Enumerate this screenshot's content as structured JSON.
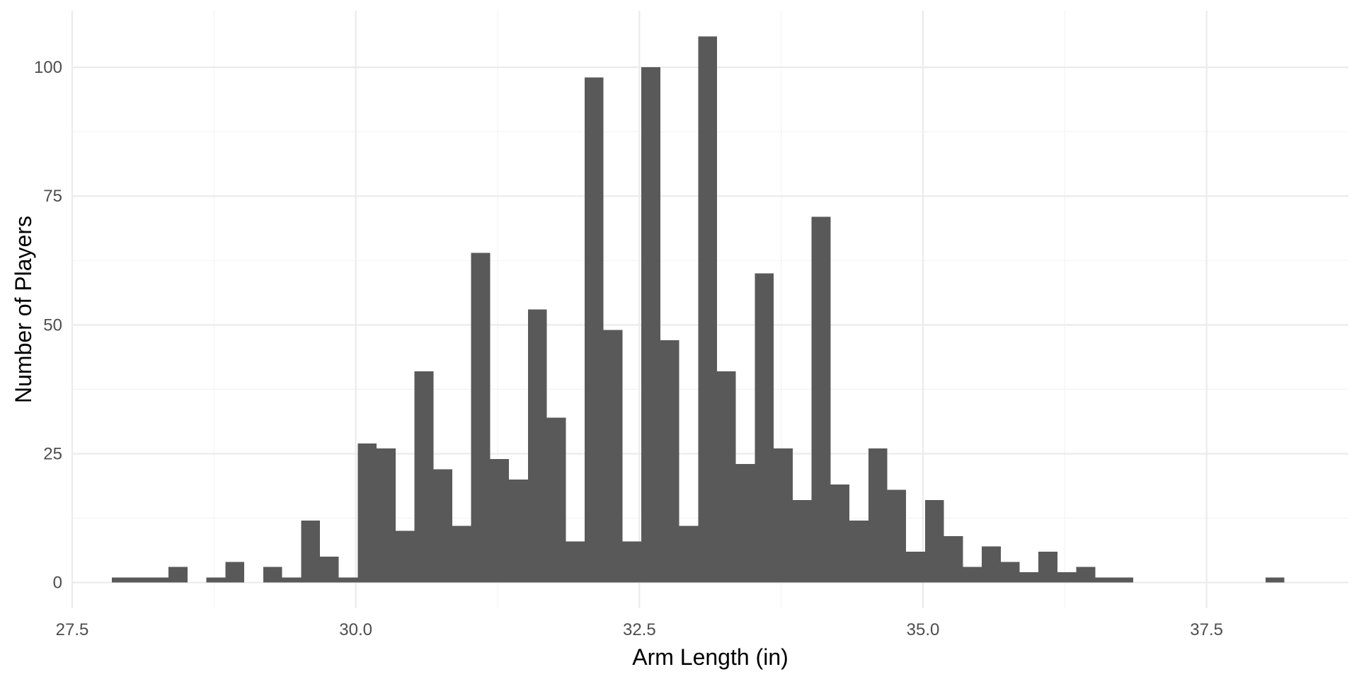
{
  "chart_data": {
    "type": "bar",
    "subtype": "histogram",
    "title": "",
    "xlabel": "Arm Length (in)",
    "ylabel": "Number of Players",
    "xlim": [
      27.5,
      38.75
    ],
    "ylim": [
      -5,
      111
    ],
    "x_major_ticks": [
      27.5,
      30.0,
      32.5,
      35.0,
      37.5
    ],
    "x_tick_labels": [
      "27.5",
      "30.0",
      "32.5",
      "35.0",
      "37.5"
    ],
    "y_major_ticks": [
      0,
      25,
      50,
      75,
      100
    ],
    "y_tick_labels": [
      "0",
      "25",
      "50",
      "75",
      "100"
    ],
    "grid": true,
    "bar_color": "#595959",
    "bin_width": 0.1667,
    "bin_start": 27.85,
    "values": [
      1,
      1,
      1,
      3,
      0,
      1,
      4,
      0,
      3,
      1,
      12,
      5,
      1,
      27,
      26,
      10,
      41,
      22,
      11,
      64,
      24,
      20,
      53,
      32,
      8,
      98,
      49,
      8,
      100,
      47,
      11,
      106,
      41,
      23,
      60,
      26,
      16,
      71,
      19,
      12,
      26,
      18,
      6,
      16,
      9,
      3,
      7,
      4,
      2,
      6,
      2,
      3,
      1,
      1,
      0,
      0,
      0,
      0,
      0,
      0,
      0,
      1
    ]
  }
}
